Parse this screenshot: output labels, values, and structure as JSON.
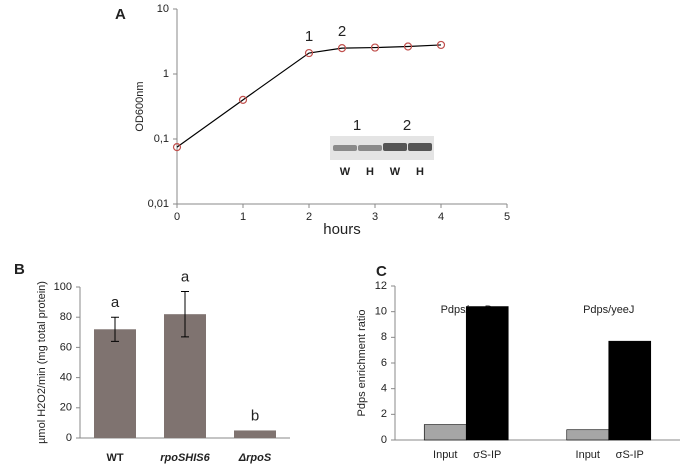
{
  "chart_data": [
    {
      "type": "line",
      "label": "A",
      "log_y": true,
      "x_label": "hours",
      "y_label": "OD600nm",
      "x": [
        0,
        1,
        2,
        2.5,
        3,
        3.5,
        4
      ],
      "values": [
        0.075,
        0.4,
        2.1,
        2.5,
        2.55,
        2.65,
        2.8
      ],
      "color": "#000000",
      "marker_color": "#c0504d",
      "xlim": [
        0,
        5
      ],
      "xticks": [
        0,
        1,
        2,
        3,
        4,
        5
      ],
      "ylim": [
        0.01,
        10
      ],
      "yticks": [
        {
          "value": 0.01,
          "label": "0,01"
        },
        {
          "value": 0.1,
          "label": "0,1"
        },
        1,
        10
      ],
      "annotations": [
        {
          "text": "1",
          "x": 2
        },
        {
          "text": "2",
          "x": 2.5
        }
      ],
      "inset": {
        "lane_groups": [
          "1",
          "2"
        ],
        "lanes": [
          "W",
          "H",
          "W",
          "H"
        ]
      }
    },
    {
      "type": "bar",
      "label": "B",
      "y_label": "µmol H2O2/min (mg total protein)",
      "categories": [
        "WT",
        "rpoSHIS6",
        "ΔrpoS"
      ],
      "values": [
        72,
        82,
        5
      ],
      "errors": [
        8,
        15,
        null
      ],
      "value_labels": [
        "a",
        "a",
        "b"
      ],
      "color": "#7f7370",
      "ylim": [
        0,
        100
      ],
      "yticks": [
        0,
        20,
        40,
        60,
        80,
        100
      ]
    },
    {
      "type": "groupbar",
      "label": "C",
      "y_label": "Pdps enrichment ratio",
      "categories": [
        "Pdps/rpoB",
        "Pdps/yeeJ"
      ],
      "series": [
        {
          "name": "Input",
          "color": "#a6a6a6",
          "values": [
            1.2,
            0.8
          ]
        },
        {
          "name": "σS-IP",
          "color": "#000000",
          "values": [
            10.4,
            7.7
          ]
        }
      ],
      "ylim": [
        0,
        12
      ],
      "yticks": [
        0,
        2,
        4,
        6,
        8,
        10,
        12
      ]
    }
  ]
}
